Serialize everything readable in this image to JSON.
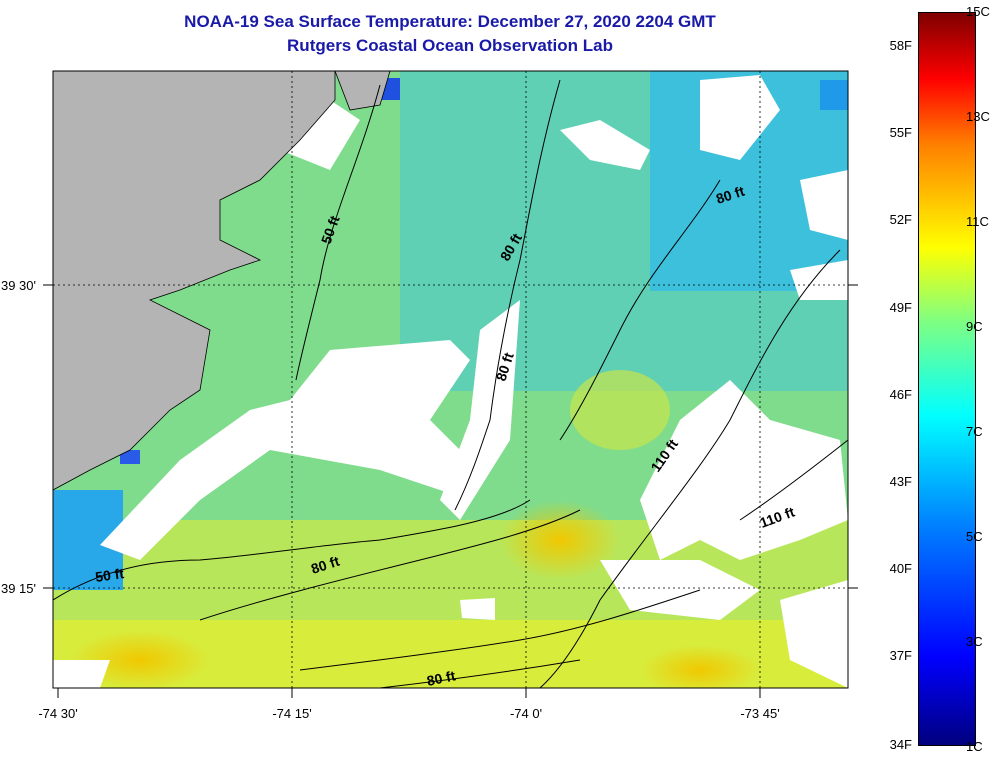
{
  "header": {
    "title": "NOAA-19 Sea Surface Temperature:  December 27, 2020 2204 GMT",
    "subtitle": "Rutgers Coastal Ocean Observation Lab"
  },
  "map": {
    "lat_labels": [
      "39 30'",
      "39 15'"
    ],
    "lon_labels": [
      "-74 30'",
      "-74 15'",
      "-74 0'",
      "-73 45'"
    ],
    "contour_labels": [
      "50 ft",
      "80 ft",
      "80 ft",
      "80 ft",
      "110 ft",
      "110 ft",
      "80 ft",
      "50 ft",
      "80 ft"
    ],
    "colors": {
      "land": "#b4b4b4",
      "cloud": "#ffffff",
      "frame": "#000000"
    }
  },
  "colorbar": {
    "fahrenheit_labels": [
      "58F",
      "55F",
      "52F",
      "49F",
      "46F",
      "43F",
      "40F",
      "37F",
      "34F"
    ],
    "celsius_labels": [
      "15C",
      "13C",
      "11C",
      "9C",
      "7C",
      "5C",
      "3C",
      "1C"
    ]
  }
}
